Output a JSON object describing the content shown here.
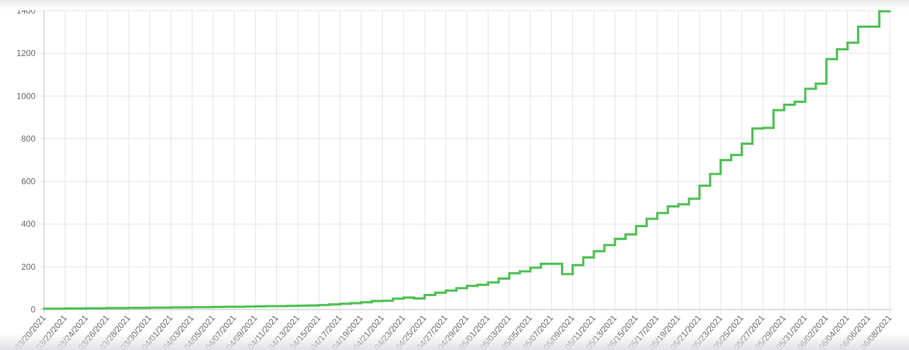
{
  "chart_data": {
    "type": "line",
    "stepped": true,
    "title": "",
    "xlabel": "",
    "ylabel": "",
    "ylim": [
      0,
      1400
    ],
    "yticks": [
      0,
      200,
      400,
      600,
      800,
      1000,
      1200,
      1400
    ],
    "grid": true,
    "legend": "none",
    "line_color": "#4fc154",
    "x": [
      "03/20/2021",
      "03/21/2021",
      "03/22/2021",
      "03/23/2021",
      "03/24/2021",
      "03/25/2021",
      "03/26/2021",
      "03/27/2021",
      "03/28/2021",
      "03/29/2021",
      "03/30/2021",
      "03/31/2021",
      "04/01/2021",
      "04/02/2021",
      "04/03/2021",
      "04/04/2021",
      "04/05/2021",
      "04/06/2021",
      "04/07/2021",
      "04/08/2021",
      "04/09/2021",
      "04/10/2021",
      "04/11/2021",
      "04/12/2021",
      "04/13/2021",
      "04/14/2021",
      "04/15/2021",
      "04/16/2021",
      "04/17/2021",
      "04/18/2021",
      "04/19/2021",
      "04/20/2021",
      "04/21/2021",
      "04/22/2021",
      "04/23/2021",
      "04/24/2021",
      "04/25/2021",
      "04/26/2021",
      "04/27/2021",
      "04/28/2021",
      "04/29/2021",
      "04/30/2021",
      "05/01/2021",
      "05/02/2021",
      "05/03/2021",
      "05/04/2021",
      "05/05/2021",
      "05/06/2021",
      "05/07/2021",
      "05/08/2021",
      "05/09/2021",
      "05/10/2021",
      "05/11/2021",
      "05/12/2021",
      "05/13/2021",
      "05/14/2021",
      "05/15/2021",
      "05/16/2021",
      "05/17/2021",
      "05/18/2021",
      "05/19/2021",
      "05/20/2021",
      "05/21/2021",
      "05/22/2021",
      "05/23/2021",
      "05/24/2021",
      "05/25/2021",
      "05/26/2021",
      "05/27/2021",
      "05/28/2021",
      "05/29/2021",
      "05/30/2021",
      "05/31/2021",
      "06/01/2021",
      "06/02/2021",
      "06/03/2021",
      "06/04/2021",
      "06/05/2021",
      "06/06/2021",
      "06/07/2021",
      "06/08/2021"
    ],
    "values": [
      3,
      4,
      4,
      5,
      5,
      6,
      6,
      7,
      7,
      8,
      8,
      9,
      9,
      10,
      10,
      11,
      11,
      12,
      13,
      13,
      14,
      15,
      16,
      16,
      17,
      18,
      19,
      21,
      24,
      27,
      30,
      34,
      40,
      41,
      51,
      56,
      52,
      68,
      79,
      89,
      100,
      111,
      116,
      127,
      145,
      170,
      179,
      196,
      214,
      214,
      166,
      208,
      244,
      273,
      302,
      331,
      352,
      391,
      425,
      452,
      483,
      493,
      519,
      580,
      635,
      700,
      724,
      777,
      848,
      851,
      934,
      959,
      973,
      1034,
      1058,
      1173,
      1219,
      1250,
      1325,
      1325,
      1397
    ]
  }
}
